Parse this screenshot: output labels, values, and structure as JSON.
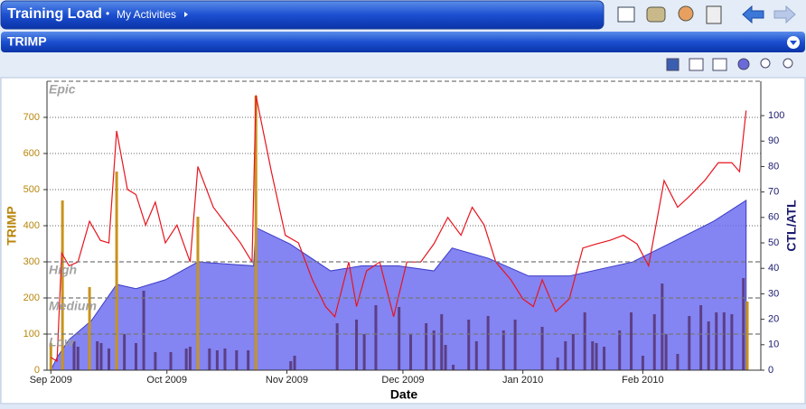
{
  "header": {
    "title": "Training Load",
    "separator": "•",
    "breadcrumb": "My Activities"
  },
  "panel": {
    "title": "TRIMP"
  },
  "chart_data": {
    "type": "combo",
    "xlabel": "Date",
    "ylabel": "TRIMP",
    "y2label": "CTL/ATL",
    "xlim": [
      -1,
      183.5
    ],
    "xticks": [
      {
        "value": 0,
        "label": "Sep 2009"
      },
      {
        "value": 30,
        "label": "Oct 2009"
      },
      {
        "value": 61,
        "label": "Nov 2009"
      },
      {
        "value": 91,
        "label": "Dec 2009"
      },
      {
        "value": 122,
        "label": "Jan 2010"
      },
      {
        "value": 153,
        "label": "Feb 2010"
      }
    ],
    "ylim": [
      0,
      800
    ],
    "yticks": [
      0,
      100,
      200,
      300,
      400,
      500,
      600,
      700
    ],
    "y2lim": [
      0,
      113.5
    ],
    "y2ticks": [
      0,
      10,
      20,
      30,
      40,
      50,
      60,
      70,
      80,
      90,
      100
    ],
    "grid": true,
    "zones": [
      {
        "label": "Epic",
        "value": 800
      },
      {
        "label": "High",
        "value": 300
      },
      {
        "label": "Medium",
        "value": 200
      },
      {
        "label": "Low",
        "value": 100
      }
    ],
    "series": [
      {
        "type": "area",
        "axis": "y2",
        "color": "#6f6ff0",
        "x": [
          0,
          1.6,
          4.7,
          10.5,
          17,
          22,
          29.6,
          38,
          52.4,
          53,
          61.8,
          72.3,
          80.4,
          89.7,
          99,
          103.7,
          113,
          123.5,
          134,
          150.3,
          159.7,
          171.3,
          179.7
        ],
        "values": [
          0,
          5,
          12,
          19.5,
          33.7,
          32,
          35.5,
          42.5,
          41,
          56,
          49.6,
          39,
          41,
          41,
          39,
          48,
          44,
          37,
          37,
          42.5,
          49.6,
          58.5,
          66.7
        ]
      },
      {
        "type": "bar",
        "axis": "y",
        "color": "#5b3f86",
        "x": [
          6,
          7,
          12,
          13,
          15,
          19,
          22,
          24,
          27,
          31,
          35,
          36,
          41,
          43,
          45,
          48,
          51,
          62,
          63,
          74,
          79,
          81,
          84,
          90,
          93,
          97,
          99,
          101,
          102,
          104,
          108,
          110,
          113,
          117,
          120,
          127,
          131,
          133,
          135,
          138,
          140,
          141,
          143,
          147,
          150,
          153,
          156,
          158,
          159,
          162,
          165,
          168,
          170,
          172,
          174,
          176,
          179
        ],
        "values": [
          80,
          65,
          80,
          75,
          60,
          100,
          75,
          220,
          50,
          50,
          60,
          65,
          60,
          55,
          60,
          55,
          55,
          25,
          40,
          130,
          140,
          100,
          180,
          175,
          100,
          130,
          110,
          155,
          70,
          15,
          140,
          80,
          150,
          110,
          140,
          120,
          35,
          80,
          100,
          160,
          80,
          75,
          65,
          110,
          160,
          40,
          155,
          240,
          100,
          45,
          150,
          180,
          135,
          160,
          160,
          155,
          255
        ]
      },
      {
        "type": "bar",
        "axis": "y",
        "color": "#c8941e",
        "x": [
          0,
          3,
          10,
          17,
          38,
          53,
          180
        ],
        "values": [
          75,
          470,
          230,
          550,
          425,
          760,
          190
        ]
      },
      {
        "type": "line",
        "axis": "y2",
        "color": "#e8141e",
        "x": [
          0,
          1.6,
          2.8,
          4.7,
          7,
          10,
          12.8,
          15,
          17,
          19.8,
          22,
          24.5,
          27,
          29.6,
          32.6,
          36,
          38,
          42,
          45.5,
          49,
          52,
          53,
          57,
          60.6,
          64,
          67.6,
          71,
          73.4,
          77,
          79,
          81.6,
          85,
          88.6,
          92,
          95.6,
          99,
          102.6,
          106,
          108.9,
          112,
          115,
          118.9,
          122,
          124.7,
          127,
          130.5,
          134,
          137.5,
          141,
          144.5,
          148,
          151.5,
          154.5,
          158.5,
          162,
          165.5,
          169,
          172.5,
          176,
          178,
          179.7
        ],
        "values": [
          5,
          3.5,
          46,
          41,
          42.5,
          58.5,
          51,
          50,
          94,
          71,
          69,
          57,
          66,
          50,
          57,
          42.5,
          80,
          64,
          57,
          50,
          42.5,
          108,
          78,
          53,
          50,
          35.5,
          25,
          21,
          42.5,
          25,
          39,
          42.5,
          21,
          42.5,
          42.5,
          49.6,
          60,
          53,
          64,
          57,
          42.5,
          35.5,
          28,
          25,
          35.5,
          23,
          28,
          48,
          49.6,
          51,
          53,
          49.6,
          41,
          74.5,
          64,
          69,
          74.5,
          81.5,
          81.5,
          78,
          102
        ]
      }
    ]
  }
}
